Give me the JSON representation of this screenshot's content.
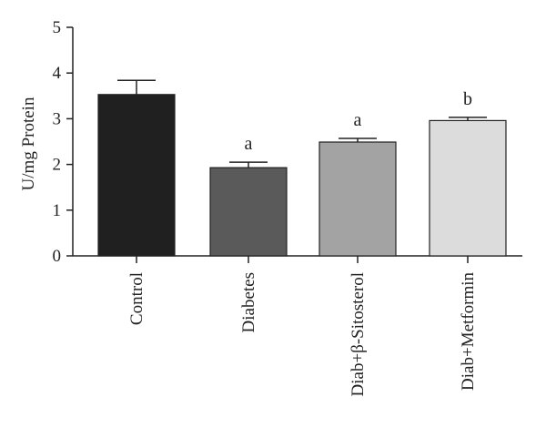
{
  "chart_data": {
    "type": "bar",
    "title": "",
    "xlabel": "",
    "ylabel": "U/mg Protein",
    "ylim": [
      0,
      5
    ],
    "yticks": [
      0,
      1,
      2,
      3,
      4,
      5
    ],
    "grid": false,
    "legend": "none",
    "categories": [
      "Control",
      "Diabetes",
      "Diab+β-Sitosterol",
      "Diab+Metformin"
    ],
    "values": [
      3.53,
      1.93,
      2.49,
      2.96
    ],
    "errors": [
      0.31,
      0.12,
      0.08,
      0.07
    ],
    "annotations": [
      "",
      "a",
      "a",
      "b"
    ],
    "bar_colors": [
      "#202020",
      "#5a5a5a",
      "#a3a3a3",
      "#dcdcdc"
    ],
    "bar_edge_color": "#222222"
  }
}
